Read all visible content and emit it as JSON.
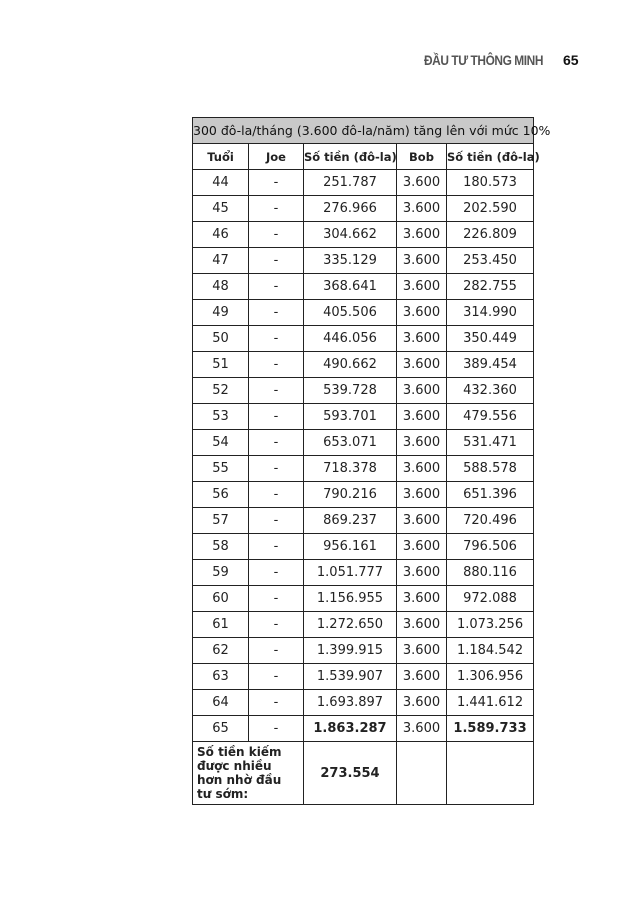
{
  "header": {
    "running_title": "ĐẦU TƯ THÔNG MINH",
    "page_number": "65"
  },
  "table": {
    "title": "300 đô-la/tháng (3.600 đô-la/năm) tăng lên với mức 10%",
    "columns": [
      "Tuổi",
      "Joe",
      "Số tiền (đô-la)",
      "Bob",
      "Số tiền (đô-la)"
    ],
    "rows": [
      [
        "44",
        "-",
        "251.787",
        "3.600",
        "180.573"
      ],
      [
        "45",
        "-",
        "276.966",
        "3.600",
        "202.590"
      ],
      [
        "46",
        "-",
        "304.662",
        "3.600",
        "226.809"
      ],
      [
        "47",
        "-",
        "335.129",
        "3.600",
        "253.450"
      ],
      [
        "48",
        "-",
        "368.641",
        "3.600",
        "282.755"
      ],
      [
        "49",
        "-",
        "405.506",
        "3.600",
        "314.990"
      ],
      [
        "50",
        "-",
        "446.056",
        "3.600",
        "350.449"
      ],
      [
        "51",
        "-",
        "490.662",
        "3.600",
        "389.454"
      ],
      [
        "52",
        "-",
        "539.728",
        "3.600",
        "432.360"
      ],
      [
        "53",
        "-",
        "593.701",
        "3.600",
        "479.556"
      ],
      [
        "54",
        "-",
        "653.071",
        "3.600",
        "531.471"
      ],
      [
        "55",
        "-",
        "718.378",
        "3.600",
        "588.578"
      ],
      [
        "56",
        "-",
        "790.216",
        "3.600",
        "651.396"
      ],
      [
        "57",
        "-",
        "869.237",
        "3.600",
        "720.496"
      ],
      [
        "58",
        "-",
        "956.161",
        "3.600",
        "796.506"
      ],
      [
        "59",
        "-",
        "1.051.777",
        "3.600",
        "880.116"
      ],
      [
        "60",
        "-",
        "1.156.955",
        "3.600",
        "972.088"
      ],
      [
        "61",
        "-",
        "1.272.650",
        "3.600",
        "1.073.256"
      ],
      [
        "62",
        "-",
        "1.399.915",
        "3.600",
        "1.184.542"
      ],
      [
        "63",
        "-",
        "1.539.907",
        "3.600",
        "1.306.956"
      ],
      [
        "64",
        "-",
        "1.693.897",
        "3.600",
        "1.441.612"
      ],
      [
        "65",
        "-",
        "1.863.287",
        "3.600",
        "1.589.733"
      ]
    ],
    "summary_label": "Số tiền kiếm được nhiều hơn nhờ đầu tư sớm:",
    "summary_value": "273.554"
  }
}
